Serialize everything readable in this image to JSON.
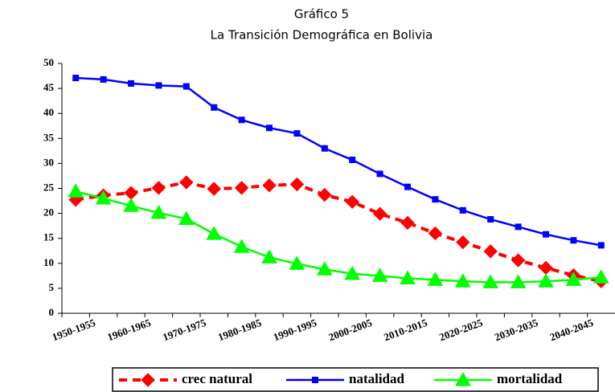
{
  "chart_data": {
    "type": "line",
    "title": "Gráfico  5",
    "subtitle": "La Transición Demográfica en Bolivia",
    "categories": [
      "1950-1955",
      null,
      "1960-1965",
      null,
      "1970-1975",
      null,
      "1980-1985",
      null,
      "1990-1995",
      null,
      "2000-2005",
      null,
      "2010-2015",
      null,
      "2020-2025",
      null,
      "2030-2035",
      null,
      "2040-2045",
      null
    ],
    "series": [
      {
        "name": "crec natural",
        "color": "#ff0000",
        "marker": "diamond",
        "dashed": true,
        "values": [
          22.7,
          23.6,
          24.1,
          25.1,
          26.2,
          24.9,
          25.1,
          25.6,
          25.8,
          23.7,
          22.3,
          19.9,
          18.1,
          16.0,
          14.2,
          12.4,
          10.6,
          9.1,
          7.6,
          6.4
        ]
      },
      {
        "name": "natalidad",
        "color": "#0000ff",
        "marker": "square",
        "dashed": false,
        "values": [
          47.1,
          46.8,
          46.0,
          45.6,
          45.4,
          41.2,
          38.7,
          37.1,
          36.0,
          33.0,
          30.7,
          27.9,
          25.3,
          22.8,
          20.6,
          18.8,
          17.3,
          15.8,
          14.6,
          13.6
        ]
      },
      {
        "name": "mortalidad",
        "color": "#00ff00",
        "marker": "triangle",
        "dashed": false,
        "values": [
          24.4,
          23.0,
          21.5,
          20.1,
          18.9,
          15.9,
          13.3,
          11.2,
          9.9,
          8.8,
          7.9,
          7.5,
          7.0,
          6.7,
          6.4,
          6.2,
          6.2,
          6.4,
          6.7,
          7.2
        ]
      }
    ],
    "ylim": [
      0,
      50
    ],
    "yticks": [
      0,
      5,
      10,
      15,
      20,
      25,
      30,
      35,
      40,
      45,
      50
    ],
    "grid": false,
    "legend": "bottom"
  }
}
